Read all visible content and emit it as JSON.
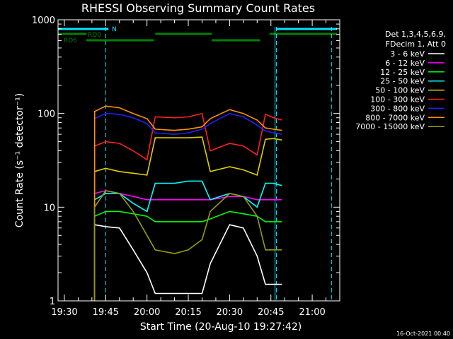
{
  "chart_data": {
    "type": "line",
    "title": "RHESSI Observing Summary Count Rates",
    "xlabel": "Start Time (20-Aug-10 19:27:42)",
    "ylabel": "Count Rate (s⁻¹ detector⁻¹)",
    "y_scale": "log",
    "ylim": [
      1,
      1000
    ],
    "xlim": [
      "19:27:42",
      "21:10:00"
    ],
    "x_ticks": [
      "19:30",
      "19:45",
      "20:00",
      "20:15",
      "20:30",
      "20:45",
      "21:00"
    ],
    "y_ticks": [
      "1",
      "10",
      "100",
      "1000"
    ],
    "grid": false,
    "legend_position": "right",
    "legend_header": [
      "Det 1,3,4,5,6,9,",
      "FDecim 1, Att 0"
    ],
    "footer_stamp": "16-Oct-2021 00:40",
    "flags": [
      {
        "label": "N",
        "color": "#00e5ff",
        "segments": [
          [
            "19:27:42",
            "19:46:00"
          ],
          [
            "20:47:00",
            "21:09:00"
          ]
        ]
      },
      {
        "label": "RD0",
        "color": "#008000",
        "segments": [
          [
            "19:27:42",
            "19:38:00"
          ],
          [
            "20:03:00",
            "20:23:30"
          ],
          [
            "20:44:30",
            "21:09:00"
          ]
        ]
      },
      {
        "label": "RD6",
        "color": "#008000",
        "segments": [
          [
            "19:38:00",
            "20:02:30"
          ],
          [
            "20:23:30",
            "20:41:00"
          ]
        ]
      }
    ],
    "markers": [
      {
        "time": "19:45:00",
        "color": "#00e5ff",
        "style": "dashed"
      },
      {
        "time": "20:47:00",
        "color": "#00e5ff",
        "style": "dashed"
      },
      {
        "time": "21:07:00",
        "color": "#00e5ff",
        "style": "dashed"
      },
      {
        "time": "19:27:42",
        "color": "#00e5ff",
        "style": "solid"
      },
      {
        "time": "20:46:30",
        "color": "#00e5ff",
        "style": "solid"
      }
    ],
    "x": [
      "19:41",
      "19:45",
      "19:50",
      "19:55",
      "20:00",
      "20:03",
      "20:10",
      "20:15",
      "20:20",
      "20:23",
      "20:30",
      "20:35",
      "20:40",
      "20:43",
      "20:46",
      "20:49"
    ],
    "series": [
      {
        "name": "3 - 6 keV",
        "color": "#ffffff",
        "values": [
          6.5,
          6.2,
          6.0,
          3.5,
          2.0,
          1.2,
          1.2,
          1.2,
          1.2,
          2.5,
          6.5,
          6.0,
          3.0,
          1.5,
          1.5,
          1.5
        ]
      },
      {
        "name": "6 - 12 keV",
        "color": "#ff00ff",
        "values": [
          14,
          15,
          14,
          13,
          12,
          12,
          12,
          12,
          12,
          12,
          13,
          13,
          12,
          12,
          12,
          12
        ]
      },
      {
        "name": "12 - 25 keV",
        "color": "#00ff00",
        "values": [
          8,
          9,
          9,
          8.5,
          8,
          7,
          7,
          7,
          7,
          7.5,
          9,
          8.5,
          8,
          7,
          7,
          7
        ]
      },
      {
        "name": "25 - 50 keV",
        "color": "#00ffff",
        "values": [
          12,
          14,
          14,
          11,
          9,
          18,
          18,
          19,
          19,
          12,
          14,
          13,
          10,
          18,
          18,
          17
        ]
      },
      {
        "name": "50 - 100 keV",
        "color": "#e0d000",
        "values": [
          24,
          26,
          24,
          23,
          22,
          55,
          55,
          55,
          56,
          24,
          27,
          25,
          22,
          53,
          54,
          52
        ]
      },
      {
        "name": "100 - 300 keV",
        "color": "#ff2020",
        "values": [
          45,
          50,
          48,
          40,
          32,
          92,
          90,
          92,
          100,
          40,
          48,
          45,
          36,
          98,
          90,
          85
        ]
      },
      {
        "name": "300 - 800 keV",
        "color": "#2020ff",
        "values": [
          88,
          100,
          98,
          90,
          78,
          62,
          60,
          62,
          68,
          78,
          100,
          92,
          75,
          65,
          62,
          60
        ]
      },
      {
        "name": "800 - 7000 keV",
        "color": "#ff9000",
        "values": [
          105,
          120,
          115,
          100,
          88,
          68,
          66,
          68,
          72,
          88,
          110,
          100,
          85,
          70,
          68,
          66
        ]
      },
      {
        "name": "7000 - 15000 keV",
        "color": "#9a9a10",
        "values": [
          10,
          15,
          14,
          9,
          5,
          3.5,
          3.2,
          3.5,
          4.5,
          9,
          14,
          13,
          8,
          3.5,
          3.5,
          3.5
        ]
      }
    ]
  }
}
